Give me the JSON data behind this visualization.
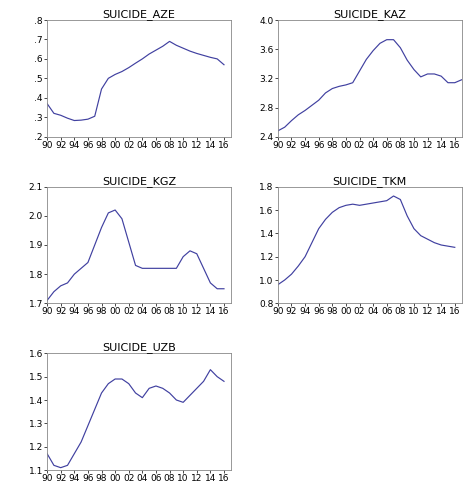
{
  "years": [
    1990,
    1991,
    1992,
    1993,
    1994,
    1995,
    1996,
    1997,
    1998,
    1999,
    2000,
    2001,
    2002,
    2003,
    2004,
    2005,
    2006,
    2007,
    2008,
    2009,
    2010,
    2011,
    2012,
    2013,
    2014,
    2015,
    2016,
    2017
  ],
  "SUICIDE_AZE": [
    0.37,
    0.32,
    0.31,
    0.295,
    0.283,
    0.285,
    0.29,
    0.305,
    0.445,
    0.5,
    0.52,
    0.535,
    0.555,
    0.578,
    0.6,
    0.625,
    0.645,
    0.665,
    0.69,
    0.67,
    0.655,
    0.64,
    0.628,
    0.618,
    0.608,
    0.6,
    0.57,
    null
  ],
  "SUICIDE_KAZ": [
    2.48,
    2.53,
    2.62,
    2.7,
    2.76,
    2.83,
    2.9,
    3.0,
    3.06,
    3.09,
    3.11,
    3.14,
    3.3,
    3.46,
    3.58,
    3.68,
    3.73,
    3.73,
    3.62,
    3.45,
    3.32,
    3.22,
    3.26,
    3.26,
    3.23,
    3.14,
    3.14,
    3.18
  ],
  "SUICIDE_KGZ": [
    1.71,
    1.74,
    1.76,
    1.77,
    1.8,
    1.82,
    1.84,
    1.9,
    1.96,
    2.01,
    2.02,
    1.99,
    1.91,
    1.83,
    1.82,
    1.82,
    1.82,
    1.82,
    1.82,
    1.82,
    1.86,
    1.88,
    1.87,
    1.82,
    1.77,
    1.75,
    1.75,
    null
  ],
  "SUICIDE_TKM": [
    0.96,
    1.0,
    1.05,
    1.12,
    1.2,
    1.32,
    1.44,
    1.52,
    1.58,
    1.62,
    1.64,
    1.65,
    1.64,
    1.65,
    1.66,
    1.67,
    1.68,
    1.72,
    1.69,
    1.55,
    1.44,
    1.38,
    1.35,
    1.32,
    1.3,
    1.29,
    1.28,
    null
  ],
  "SUICIDE_UZB": [
    1.17,
    1.12,
    1.11,
    1.12,
    1.17,
    1.22,
    1.29,
    1.36,
    1.43,
    1.47,
    1.49,
    1.49,
    1.47,
    1.43,
    1.41,
    1.45,
    1.46,
    1.45,
    1.43,
    1.4,
    1.39,
    1.42,
    1.45,
    1.48,
    1.53,
    1.5,
    1.48,
    null
  ],
  "line_color": "#4040a0",
  "title_fontsize": 8,
  "tick_fontsize": 6.5,
  "ylim_AZE": [
    0.2,
    0.8
  ],
  "yticks_AZE": [
    0.2,
    0.3,
    0.4,
    0.5,
    0.6,
    0.7,
    0.8
  ],
  "ylim_KAZ": [
    2.4,
    4.0
  ],
  "yticks_KAZ": [
    2.4,
    2.8,
    3.2,
    3.6,
    4.0
  ],
  "ylim_KGZ": [
    1.7,
    2.1
  ],
  "yticks_KGZ": [
    1.7,
    1.8,
    1.9,
    2.0,
    2.1
  ],
  "ylim_TKM": [
    0.8,
    1.8
  ],
  "yticks_TKM": [
    0.8,
    1.0,
    1.2,
    1.4,
    1.6,
    1.8
  ],
  "ylim_UZB": [
    1.1,
    1.6
  ],
  "yticks_UZB": [
    1.1,
    1.2,
    1.3,
    1.4,
    1.5,
    1.6
  ],
  "xtick_years": [
    1990,
    1992,
    1994,
    1996,
    1998,
    2000,
    2002,
    2004,
    2006,
    2008,
    2010,
    2012,
    2014,
    2016
  ]
}
